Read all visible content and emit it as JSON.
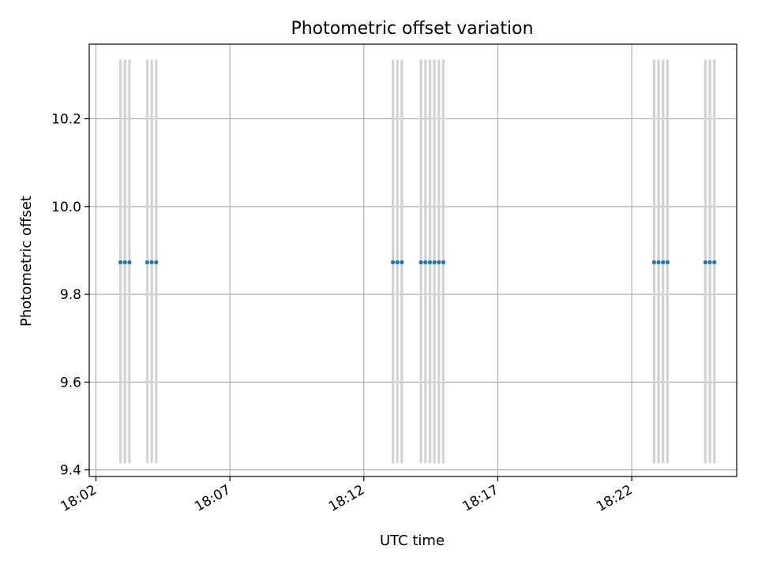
{
  "chart_data": {
    "type": "scatter",
    "title": "Photometric offset variation",
    "xlabel": "UTC time",
    "ylabel": "Photometric offset",
    "xlim": [
      "18:01:45",
      "18:25:55"
    ],
    "ylim": [
      9.385,
      10.37
    ],
    "x_ticks": [
      "18:02",
      "18:07",
      "18:12",
      "18:17",
      "18:22"
    ],
    "y_ticks": [
      "9.4",
      "9.6",
      "9.8",
      "10.0",
      "10.2"
    ],
    "grid": true,
    "point_color": "#1f77b4",
    "band_color": "#d3d3d3",
    "band_range": [
      9.415,
      10.335
    ],
    "series": [
      {
        "x": [
          "18:02:55",
          "18:03:05",
          "18:03:15",
          "18:03:55",
          "18:04:05",
          "18:04:15",
          "18:13:05",
          "18:13:15",
          "18:13:25",
          "18:14:08",
          "18:14:18",
          "18:14:28",
          "18:14:38",
          "18:14:48",
          "18:14:58",
          "18:22:50",
          "18:23:00",
          "18:23:10",
          "18:23:20",
          "18:24:45",
          "18:24:55",
          "18:25:05"
        ],
        "y": [
          9.873,
          9.873,
          9.873,
          9.873,
          9.873,
          9.873,
          9.873,
          9.873,
          9.873,
          9.873,
          9.873,
          9.873,
          9.873,
          9.873,
          9.873,
          9.873,
          9.873,
          9.873,
          9.873,
          9.873,
          9.873,
          9.873
        ]
      }
    ]
  }
}
